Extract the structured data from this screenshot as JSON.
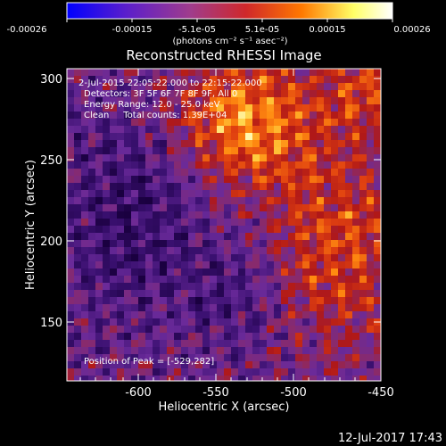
{
  "colorbar": {
    "tick_labels": [
      "-0.00026",
      "-0.00015",
      "-5.1e-05",
      "5.1e-05",
      "0.00015",
      "0.00026"
    ],
    "units": "(photons cm⁻² s⁻¹ asec⁻²)",
    "range": [
      -0.00026,
      0.00026
    ],
    "stops": [
      "#0000ff",
      "#5a1ecc",
      "#a03c8c",
      "#d0282a",
      "#ff7800",
      "#ffff66",
      "#ffffff"
    ]
  },
  "title": "Reconstructed RHESSI Image",
  "overlay": {
    "time_range": "2-Jul-2015 22:05:22.000 to 22:15:22.000",
    "detectors": "Detectors: 3F 5F 6F 7F 8F 9F, All 0",
    "energy": "Energy Range: 12.0 - 25.0 keV",
    "method_counts": "Clean     Total counts: 1.39E+04",
    "peak": "Position of Peak = [-529,282]"
  },
  "axes": {
    "xlabel": "Heliocentric X (arcsec)",
    "ylabel": "Heliocentric Y (arcsec)",
    "xlim": [
      -645,
      -450
    ],
    "ylim": [
      118,
      308
    ],
    "xticks": [
      "-600",
      "-550",
      "-500",
      "-450"
    ],
    "yticks": [
      "150",
      "200",
      "250",
      "300"
    ]
  },
  "timestamp": "12-Jul-2017 17:43"
}
